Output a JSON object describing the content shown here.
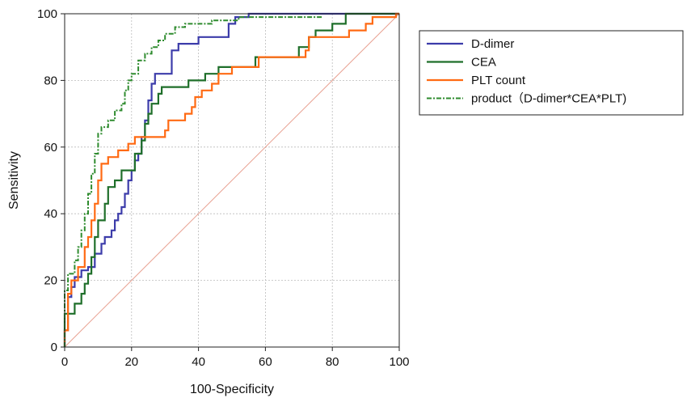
{
  "chart_data": {
    "type": "line",
    "xlabel": "100-Specificity",
    "ylabel": "Sensitivity",
    "xlim": [
      0,
      100
    ],
    "ylim": [
      0,
      100
    ],
    "xticks": [
      0,
      20,
      40,
      60,
      80,
      100
    ],
    "yticks": [
      0,
      20,
      40,
      60,
      80,
      100
    ],
    "grid": true,
    "legend_position": "right, outside plot",
    "reference_line": {
      "x": [
        0,
        100
      ],
      "y": [
        0,
        100
      ],
      "color": "#e8a090"
    },
    "series": [
      {
        "name": "D-dimer",
        "color": "#3c3caa",
        "style": "solid",
        "points": [
          [
            0,
            0
          ],
          [
            0,
            5
          ],
          [
            1,
            5
          ],
          [
            1,
            15
          ],
          [
            2,
            15
          ],
          [
            2,
            18
          ],
          [
            3,
            18
          ],
          [
            3,
            21
          ],
          [
            5,
            21
          ],
          [
            5,
            23
          ],
          [
            7,
            23
          ],
          [
            7,
            24
          ],
          [
            9,
            24
          ],
          [
            9,
            28
          ],
          [
            11,
            28
          ],
          [
            11,
            31
          ],
          [
            12,
            31
          ],
          [
            12,
            33
          ],
          [
            14,
            33
          ],
          [
            14,
            35
          ],
          [
            15,
            35
          ],
          [
            15,
            38
          ],
          [
            16,
            38
          ],
          [
            16,
            40
          ],
          [
            17,
            40
          ],
          [
            17,
            42
          ],
          [
            18,
            42
          ],
          [
            18,
            46
          ],
          [
            19,
            46
          ],
          [
            19,
            50
          ],
          [
            20,
            50
          ],
          [
            20,
            53
          ],
          [
            21,
            53
          ],
          [
            21,
            56
          ],
          [
            22,
            56
          ],
          [
            22,
            58
          ],
          [
            23,
            58
          ],
          [
            23,
            63
          ],
          [
            24,
            63
          ],
          [
            24,
            68
          ],
          [
            25,
            68
          ],
          [
            25,
            74
          ],
          [
            26,
            74
          ],
          [
            26,
            79
          ],
          [
            27,
            79
          ],
          [
            27,
            82
          ],
          [
            32,
            82
          ],
          [
            32,
            89
          ],
          [
            34,
            89
          ],
          [
            34,
            91
          ],
          [
            40,
            91
          ],
          [
            40,
            93
          ],
          [
            49,
            93
          ],
          [
            49,
            97
          ],
          [
            51,
            97
          ],
          [
            51,
            99
          ],
          [
            55,
            99
          ],
          [
            55,
            100
          ],
          [
            100,
            100
          ]
        ]
      },
      {
        "name": "CEA",
        "color": "#1f6f2a",
        "style": "solid",
        "points": [
          [
            0,
            0
          ],
          [
            0,
            10
          ],
          [
            3,
            10
          ],
          [
            3,
            13
          ],
          [
            5,
            13
          ],
          [
            5,
            16
          ],
          [
            6,
            16
          ],
          [
            6,
            19
          ],
          [
            7,
            19
          ],
          [
            7,
            22
          ],
          [
            8,
            22
          ],
          [
            8,
            27
          ],
          [
            9,
            27
          ],
          [
            9,
            33
          ],
          [
            10,
            33
          ],
          [
            10,
            38
          ],
          [
            12,
            38
          ],
          [
            12,
            43
          ],
          [
            13,
            43
          ],
          [
            13,
            48
          ],
          [
            15,
            48
          ],
          [
            15,
            50
          ],
          [
            17,
            50
          ],
          [
            17,
            53
          ],
          [
            21,
            53
          ],
          [
            21,
            58
          ],
          [
            23,
            58
          ],
          [
            23,
            62
          ],
          [
            24,
            62
          ],
          [
            24,
            67
          ],
          [
            25,
            67
          ],
          [
            25,
            70
          ],
          [
            26,
            70
          ],
          [
            26,
            73
          ],
          [
            28,
            73
          ],
          [
            28,
            76
          ],
          [
            29,
            76
          ],
          [
            29,
            78
          ],
          [
            37,
            78
          ],
          [
            37,
            80
          ],
          [
            42,
            80
          ],
          [
            42,
            82
          ],
          [
            46,
            82
          ],
          [
            46,
            84
          ],
          [
            57,
            84
          ],
          [
            57,
            87
          ],
          [
            70,
            87
          ],
          [
            70,
            90
          ],
          [
            73,
            90
          ],
          [
            73,
            93
          ],
          [
            75,
            93
          ],
          [
            75,
            95
          ],
          [
            80,
            95
          ],
          [
            80,
            97
          ],
          [
            84,
            97
          ],
          [
            84,
            100
          ],
          [
            100,
            100
          ]
        ]
      },
      {
        "name": "PLT count",
        "color": "#ff6a13",
        "style": "solid",
        "points": [
          [
            0,
            0
          ],
          [
            0,
            5
          ],
          [
            1,
            5
          ],
          [
            1,
            16
          ],
          [
            2,
            16
          ],
          [
            2,
            20
          ],
          [
            4,
            20
          ],
          [
            4,
            24
          ],
          [
            6,
            24
          ],
          [
            6,
            30
          ],
          [
            7,
            30
          ],
          [
            7,
            33
          ],
          [
            8,
            33
          ],
          [
            8,
            38
          ],
          [
            9,
            38
          ],
          [
            9,
            43
          ],
          [
            10,
            43
          ],
          [
            10,
            50
          ],
          [
            11,
            50
          ],
          [
            11,
            55
          ],
          [
            13,
            55
          ],
          [
            13,
            57
          ],
          [
            16,
            57
          ],
          [
            16,
            59
          ],
          [
            19,
            59
          ],
          [
            19,
            61
          ],
          [
            21,
            61
          ],
          [
            21,
            63
          ],
          [
            30,
            63
          ],
          [
            30,
            65
          ],
          [
            31,
            65
          ],
          [
            31,
            68
          ],
          [
            36,
            68
          ],
          [
            36,
            70
          ],
          [
            38,
            70
          ],
          [
            38,
            72
          ],
          [
            39,
            72
          ],
          [
            39,
            75
          ],
          [
            41,
            75
          ],
          [
            41,
            77
          ],
          [
            44,
            77
          ],
          [
            44,
            79
          ],
          [
            46,
            79
          ],
          [
            46,
            82
          ],
          [
            50,
            82
          ],
          [
            50,
            84
          ],
          [
            58,
            84
          ],
          [
            58,
            87
          ],
          [
            72,
            87
          ],
          [
            72,
            89
          ],
          [
            73,
            89
          ],
          [
            73,
            93
          ],
          [
            85,
            93
          ],
          [
            85,
            95
          ],
          [
            90,
            95
          ],
          [
            90,
            97
          ],
          [
            92,
            97
          ],
          [
            92,
            99
          ],
          [
            99,
            99
          ],
          [
            99,
            100
          ],
          [
            100,
            100
          ]
        ]
      },
      {
        "name": "product（D-dimer*CEA*PLT)",
        "color": "#2e8b2e",
        "style": "dashdot",
        "points": [
          [
            0,
            0
          ],
          [
            0,
            17
          ],
          [
            1,
            17
          ],
          [
            1,
            22
          ],
          [
            3,
            22
          ],
          [
            3,
            26
          ],
          [
            4,
            26
          ],
          [
            4,
            30
          ],
          [
            5,
            30
          ],
          [
            5,
            35
          ],
          [
            6,
            35
          ],
          [
            6,
            40
          ],
          [
            7,
            40
          ],
          [
            7,
            46
          ],
          [
            8,
            46
          ],
          [
            8,
            52
          ],
          [
            9,
            52
          ],
          [
            9,
            58
          ],
          [
            10,
            58
          ],
          [
            10,
            64
          ],
          [
            11,
            64
          ],
          [
            11,
            66
          ],
          [
            13,
            66
          ],
          [
            13,
            68
          ],
          [
            15,
            68
          ],
          [
            15,
            71
          ],
          [
            17,
            71
          ],
          [
            17,
            73
          ],
          [
            18,
            73
          ],
          [
            18,
            77
          ],
          [
            19,
            77
          ],
          [
            19,
            80
          ],
          [
            20,
            80
          ],
          [
            20,
            82
          ],
          [
            22,
            82
          ],
          [
            22,
            86
          ],
          [
            24,
            86
          ],
          [
            24,
            88
          ],
          [
            26,
            88
          ],
          [
            26,
            90
          ],
          [
            28,
            90
          ],
          [
            28,
            92
          ],
          [
            30,
            92
          ],
          [
            30,
            94
          ],
          [
            33,
            94
          ],
          [
            33,
            96
          ],
          [
            36,
            96
          ],
          [
            36,
            97
          ],
          [
            44,
            97
          ],
          [
            44,
            98
          ],
          [
            52,
            98
          ],
          [
            52,
            99
          ],
          [
            77,
            99
          ]
        ]
      }
    ]
  }
}
